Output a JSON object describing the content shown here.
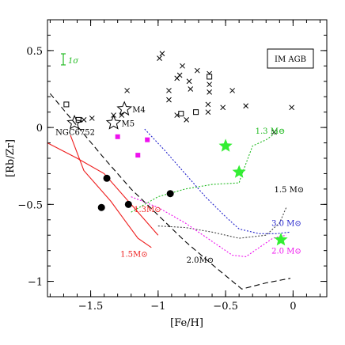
{
  "chart_data": {
    "type": "scatter",
    "xlabel": "[Fe/H]",
    "ylabel": "[Rb/Zr]",
    "xlim": [
      -1.82,
      0.25
    ],
    "ylim": [
      -1.1,
      0.7
    ],
    "xticks": [
      -1.5,
      -1,
      -0.5,
      0
    ],
    "xtick_labels": [
      "−1.5",
      "−1",
      "−0.5",
      "0"
    ],
    "yticks": [
      -1,
      -0.5,
      0,
      0.5
    ],
    "ytick_labels": [
      "−1",
      "−0.5",
      "0",
      "0.5"
    ],
    "legend_box": "IM AGB",
    "error_label": "1σ",
    "colors": {
      "red": "#ee1c1c",
      "green": "#22bb22",
      "bright_green": "#33ee33",
      "magenta": "#ee11ee",
      "blue": "#2222cc",
      "black": "#000000"
    },
    "cross_points": [
      [
        -0.99,
        0.45
      ],
      [
        -0.97,
        0.48
      ],
      [
        -0.82,
        0.4
      ],
      [
        -0.84,
        0.34
      ],
      [
        -0.86,
        0.32
      ],
      [
        -0.71,
        0.37
      ],
      [
        -0.62,
        0.35
      ],
      [
        -0.62,
        0.28
      ],
      [
        -0.62,
        0.23
      ],
      [
        -0.45,
        0.24
      ],
      [
        -0.77,
        0.3
      ],
      [
        -0.76,
        0.25
      ],
      [
        -0.92,
        0.24
      ],
      [
        -0.92,
        0.18
      ],
      [
        -0.63,
        0.15
      ],
      [
        -0.63,
        0.1
      ],
      [
        -0.52,
        0.13
      ],
      [
        -0.35,
        0.14
      ],
      [
        -0.01,
        0.13
      ],
      [
        -0.86,
        0.08
      ],
      [
        -0.79,
        0.05
      ],
      [
        -0.72,
        0.1
      ],
      [
        -1.23,
        0.24
      ],
      [
        -1.27,
        0.08
      ],
      [
        -1.33,
        0.08
      ],
      [
        -1.49,
        0.06
      ],
      [
        -1.58,
        0.05
      ],
      [
        -1.55,
        0.05
      ],
      [
        -0.14,
        -0.03
      ]
    ],
    "open_square_points": [
      [
        -1.68,
        0.15
      ],
      [
        -1.59,
        0.05
      ],
      [
        -0.62,
        0.33
      ],
      [
        -0.83,
        0.09
      ],
      [
        -0.72,
        0.1
      ]
    ],
    "open_stars": [
      {
        "label": "M4",
        "x": -1.25,
        "y": 0.12
      },
      {
        "label": "M5",
        "x": -1.33,
        "y": 0.03
      },
      {
        "label": "NGC6752",
        "x": -1.62,
        "y": 0.03
      }
    ],
    "magenta_squares": [
      [
        -1.3,
        -0.06
      ],
      [
        -1.08,
        -0.08
      ],
      [
        -1.15,
        -0.18
      ]
    ],
    "filled_circles": [
      [
        -1.38,
        -0.33
      ],
      [
        -1.42,
        -0.52
      ],
      [
        -1.22,
        -0.5
      ],
      [
        -0.91,
        -0.43
      ]
    ],
    "green_stars": [
      [
        -0.5,
        -0.12
      ],
      [
        -0.4,
        -0.29
      ],
      [
        -0.09,
        -0.73
      ]
    ],
    "series": [
      {
        "name": "1.3 M⊙",
        "color": "#22bb22",
        "dash": "2,2",
        "x": [
          -1.2,
          -1.0,
          -0.8,
          -0.6,
          -0.4,
          -0.39,
          -0.3,
          -0.2,
          -0.12,
          -0.07
        ],
        "y": [
          -0.55,
          -0.45,
          -0.4,
          -0.37,
          -0.36,
          -0.33,
          -0.12,
          -0.08,
          -0.03,
          -0.02
        ]
      },
      {
        "name": "1.5 M⊙",
        "color": "#444444",
        "dash": "2,2",
        "x": [
          -1.0,
          -0.8,
          -0.6,
          -0.4,
          -0.2,
          -0.1,
          -0.05
        ],
        "y": [
          -0.64,
          -0.65,
          -0.68,
          -0.72,
          -0.7,
          -0.62,
          -0.52
        ]
      },
      {
        "name": "3.0 M⊙",
        "color": "#2222cc",
        "dash": "2,2",
        "x": [
          -1.1,
          -0.95,
          -0.8,
          -0.65,
          -0.5,
          -0.4,
          -0.25,
          -0.12,
          -0.02
        ],
        "y": [
          -0.01,
          -0.15,
          -0.3,
          -0.45,
          -0.58,
          -0.66,
          -0.69,
          -0.69,
          -0.68
        ]
      },
      {
        "name": "2.0 M⊙",
        "color": "#ee11ee",
        "dash": "2,2",
        "x": [
          -1.2,
          -1.0,
          -0.8,
          -0.6,
          -0.45,
          -0.35,
          -0.25,
          -0.15,
          -0.05
        ],
        "y": [
          -0.45,
          -0.52,
          -0.62,
          -0.74,
          -0.83,
          -0.84,
          -0.78,
          -0.72,
          -0.7
        ]
      },
      {
        "name": "2.0 M⊙",
        "color": "#000000",
        "dash": "7,4",
        "x": [
          -1.8,
          -1.6,
          -1.4,
          -1.2,
          -1.0,
          -0.8,
          -0.6,
          -0.38,
          -0.2,
          -0.02
        ],
        "y": [
          0.22,
          0.01,
          -0.2,
          -0.4,
          -0.57,
          -0.74,
          -0.89,
          -1.05,
          -1.01,
          -0.98
        ]
      },
      {
        "name": "1.3M⊙",
        "color": "#ee1c1c",
        "dash": "",
        "x": [
          -1.82,
          -1.6,
          -1.4,
          -1.2,
          -1.1,
          -1.0
        ],
        "y": [
          -0.1,
          -0.2,
          -0.3,
          -0.5,
          -0.6,
          -0.7
        ]
      },
      {
        "name": "1.5M⊙",
        "color": "#ee1c1c",
        "dash": "",
        "x": [
          -1.65,
          -1.55,
          -1.45,
          -1.35,
          -1.25,
          -1.15,
          -1.05
        ],
        "y": [
          -0.05,
          -0.28,
          -0.38,
          -0.48,
          -0.6,
          -0.72,
          -0.78
        ]
      }
    ],
    "curve_labels": [
      {
        "text": "1.3 M⊙",
        "color": "#22bb22",
        "x": -0.28,
        "y": -0.04
      },
      {
        "text": "1.5 M⊙",
        "color": "#000000",
        "x": -0.14,
        "y": -0.42
      },
      {
        "text": "3.0 M⊙",
        "color": "#2222cc",
        "x": -0.16,
        "y": -0.64
      },
      {
        "text": "2.0 M⊙",
        "color": "#ee11ee",
        "x": -0.16,
        "y": -0.82
      },
      {
        "text": "2.0M⊙",
        "color": "#000000",
        "x": -0.79,
        "y": -0.88
      },
      {
        "text": "1.3M⊙",
        "color": "#ee1c1c",
        "x": -1.18,
        "y": -0.55
      },
      {
        "text": "1.5M⊙",
        "color": "#ee1c1c",
        "x": -1.28,
        "y": -0.84
      }
    ]
  }
}
